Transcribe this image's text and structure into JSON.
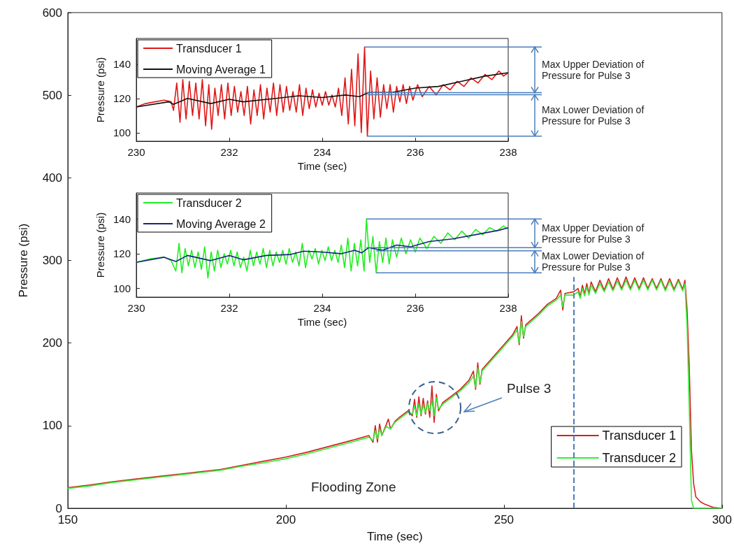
{
  "chart_data": [
    {
      "type": "line",
      "xlabel": "Time (sec)",
      "ylabel": "Pressure (psi)",
      "xlim": [
        150,
        300
      ],
      "ylim": [
        0,
        600
      ],
      "xticks": [
        150,
        200,
        250,
        300
      ],
      "yticks": [
        0,
        100,
        200,
        300,
        400,
        500,
        600
      ],
      "legend": "bottom right",
      "series": [
        {
          "name": "Transducer 1",
          "color": "#d42020",
          "x": [
            150,
            155,
            160,
            165,
            170,
            175,
            180,
            185,
            190,
            195,
            200,
            205,
            210,
            215,
            219,
            220,
            220.5,
            221,
            221.5,
            222,
            223,
            223.5,
            224,
            225,
            226,
            227,
            228,
            229,
            229.5,
            230,
            230.5,
            231,
            231.5,
            232,
            232.5,
            233,
            233.5,
            234,
            234.5,
            235,
            236,
            238,
            240,
            242,
            243,
            243.5,
            244,
            244.5,
            245,
            247,
            250,
            252,
            253,
            253.5,
            254,
            254.5,
            255,
            258,
            260,
            262,
            263,
            263.5,
            264,
            266,
            267,
            267.5,
            268,
            268.5,
            269,
            269.5,
            270,
            271,
            272,
            273,
            274,
            275,
            276,
            277,
            278,
            279,
            280,
            281,
            282,
            283,
            284,
            285,
            286,
            287,
            288,
            289,
            290,
            291,
            291.5,
            292,
            292.5,
            293,
            293.5,
            294,
            295,
            296,
            297,
            298,
            300
          ],
          "values": [
            25,
            28,
            32,
            35,
            38,
            41,
            44,
            47,
            52,
            57,
            62,
            68,
            75,
            82,
            88,
            80,
            100,
            80,
            102,
            88,
            101,
            108,
            96,
            105,
            110,
            114,
            118,
            112,
            132,
            110,
            135,
            112,
            133,
            114,
            130,
            110,
            148,
            104,
            138,
            118,
            128,
            136,
            144,
            155,
            166,
            144,
            176,
            150,
            168,
            180,
            198,
            210,
            220,
            198,
            233,
            206,
            222,
            236,
            247,
            254,
            264,
            240,
            260,
            262,
            266,
            256,
            270,
            259,
            272,
            260,
            274,
            262,
            276,
            264,
            278,
            265,
            279,
            266,
            280,
            266,
            279,
            266,
            279,
            266,
            278,
            266,
            278,
            265,
            278,
            265,
            277,
            265,
            276,
            240,
            170,
            70,
            30,
            14,
            8,
            5,
            3,
            1,
            0
          ]
        },
        {
          "name": "Transducer 2",
          "color": "#33ee33",
          "x": [
            150,
            155,
            160,
            165,
            170,
            175,
            180,
            185,
            190,
            195,
            200,
            205,
            210,
            215,
            219,
            220,
            220.5,
            221,
            221.5,
            222,
            223,
            224,
            225,
            226,
            227,
            228,
            229,
            229.5,
            230,
            230.5,
            231,
            231.5,
            232,
            232.5,
            233,
            233.5,
            234,
            234.5,
            235,
            236,
            238,
            240,
            242,
            243,
            243.5,
            244,
            244.5,
            245,
            247,
            250,
            252,
            253,
            253.5,
            254,
            254.5,
            255,
            258,
            260,
            262,
            263,
            263.5,
            264,
            266,
            267,
            267.5,
            268,
            268.5,
            269,
            269.5,
            270,
            271,
            272,
            273,
            274,
            275,
            276,
            277,
            278,
            279,
            280,
            281,
            282,
            283,
            284,
            285,
            286,
            287,
            288,
            289,
            290,
            291,
            291.5,
            292,
            292.5,
            293,
            293.5,
            300
          ],
          "values": [
            24,
            27,
            31,
            34,
            37,
            40,
            43,
            46,
            51,
            55,
            60,
            66,
            73,
            80,
            86,
            82,
            94,
            84,
            96,
            88,
            99,
            96,
            104,
            108,
            112,
            116,
            114,
            124,
            112,
            126,
            114,
            125,
            116,
            127,
            118,
            130,
            112,
            134,
            120,
            126,
            134,
            142,
            152,
            160,
            146,
            170,
            152,
            166,
            178,
            196,
            208,
            216,
            200,
            226,
            208,
            220,
            234,
            245,
            252,
            258,
            244,
            258,
            258,
            262,
            254,
            266,
            257,
            268,
            258,
            270,
            260,
            272,
            262,
            274,
            263,
            275,
            264,
            276,
            264,
            276,
            264,
            276,
            264,
            276,
            264,
            276,
            263,
            275,
            263,
            275,
            263,
            272,
            220,
            120,
            10,
            0,
            0
          ]
        }
      ],
      "ref_lines": [
        {
          "axis": "x",
          "value": 266,
          "color": "#4a7ebb",
          "line_style": "dashed"
        }
      ],
      "annotations": [
        "Flooding Zone",
        "Pulse 3"
      ]
    },
    {
      "type": "line",
      "xlabel": "Time (sec)",
      "ylabel": "Pressure (psi)",
      "xlim": [
        230,
        238
      ],
      "ylim": [
        95,
        155
      ],
      "xticks": [
        230,
        232,
        234,
        236,
        238
      ],
      "yticks": [
        100,
        120,
        140
      ],
      "legend": "top left",
      "series": [
        {
          "name": "Transducer 1",
          "color": "#e01818",
          "x": [
            230,
            230.2,
            230.4,
            230.6,
            230.75,
            230.8,
            230.87,
            230.94,
            231,
            231.07,
            231.14,
            231.21,
            231.28,
            231.35,
            231.42,
            231.49,
            231.56,
            231.62,
            231.69,
            231.76,
            231.83,
            231.9,
            231.97,
            232.04,
            232.11,
            232.18,
            232.25,
            232.32,
            232.39,
            232.46,
            232.53,
            232.6,
            232.67,
            232.74,
            232.81,
            232.88,
            232.95,
            233.02,
            233.09,
            233.16,
            233.23,
            233.3,
            233.37,
            233.44,
            233.51,
            233.58,
            233.65,
            233.72,
            233.79,
            233.86,
            233.93,
            234,
            234.07,
            234.14,
            234.21,
            234.28,
            234.35,
            234.42,
            234.49,
            234.56,
            234.63,
            234.7,
            234.77,
            234.84,
            234.91,
            234.97,
            235.04,
            235.11,
            235.18,
            235.25,
            235.32,
            235.39,
            235.46,
            235.53,
            235.6,
            235.67,
            235.74,
            235.81,
            235.88,
            235.95,
            236.05,
            236.15,
            236.3,
            236.45,
            236.6,
            236.75,
            236.9,
            237.05,
            237.2,
            237.35,
            237.5,
            237.65,
            237.8,
            237.9,
            238
          ],
          "values": [
            115,
            117,
            118,
            119,
            118,
            113,
            129,
            106,
            131,
            108,
            130,
            110,
            129,
            108,
            131,
            104,
            128,
            102,
            126,
            110,
            128,
            108,
            129,
            110,
            127,
            112,
            124,
            110,
            127,
            105,
            125,
            110,
            128,
            108,
            126,
            112,
            129,
            110,
            128,
            112,
            127,
            113,
            124,
            112,
            128,
            110,
            126,
            114,
            125,
            115,
            123,
            116,
            124,
            116,
            122,
            115,
            126,
            110,
            132,
            105,
            137,
            104,
            146,
            100,
            150,
            98,
            136,
            108,
            132,
            109,
            128,
            114,
            128,
            112,
            127,
            118,
            128,
            117,
            127,
            119,
            128,
            121,
            127,
            122,
            128,
            125,
            130,
            127,
            132,
            129,
            134,
            131,
            136,
            133,
            135
          ]
        },
        {
          "name": "Moving Average 1",
          "color": "#111111",
          "x": [
            230,
            230.7,
            230.8,
            231.1,
            231.6,
            232,
            232.3,
            233,
            233.5,
            234,
            234.5,
            234.8,
            235,
            235.5,
            236,
            236.5,
            237,
            237.5,
            238
          ],
          "values": [
            115,
            118,
            116.5,
            120,
            117,
            119.5,
            118,
            120,
            121.5,
            120.5,
            122,
            121,
            123.5,
            123.5,
            126,
            127,
            130,
            133,
            135
          ]
        }
      ],
      "annotations": [
        "Max Upper Deviation of Pressure for Pulse 3",
        "Max Lower Deviation of Pressure for Pulse 3"
      ]
    },
    {
      "type": "line",
      "xlabel": "Time (sec)",
      "ylabel": "Pressure (psi)",
      "xlim": [
        230,
        238
      ],
      "ylim": [
        95,
        155
      ],
      "xticks": [
        230,
        232,
        234,
        236,
        238
      ],
      "yticks": [
        100,
        120,
        140
      ],
      "legend": "top left",
      "series": [
        {
          "name": "Transducer 2",
          "color": "#22ee22",
          "x": [
            230,
            230.3,
            230.6,
            230.75,
            230.85,
            230.92,
            230.98,
            231.05,
            231.12,
            231.19,
            231.26,
            231.33,
            231.4,
            231.47,
            231.54,
            231.61,
            231.68,
            231.75,
            231.82,
            231.89,
            231.96,
            232.03,
            232.1,
            232.17,
            232.24,
            232.31,
            232.38,
            232.45,
            232.52,
            232.59,
            232.66,
            232.73,
            232.8,
            232.87,
            232.94,
            233.01,
            233.08,
            233.15,
            233.22,
            233.29,
            233.36,
            233.43,
            233.5,
            233.57,
            233.64,
            233.71,
            233.78,
            233.85,
            233.92,
            233.99,
            234.06,
            234.13,
            234.2,
            234.27,
            234.34,
            234.41,
            234.48,
            234.55,
            234.62,
            234.69,
            234.76,
            234.83,
            234.9,
            234.95,
            235.02,
            235.09,
            235.16,
            235.23,
            235.3,
            235.37,
            235.44,
            235.51,
            235.6,
            235.7,
            235.8,
            235.9,
            236,
            236.1,
            236.25,
            236.4,
            236.55,
            236.7,
            236.85,
            237,
            237.15,
            237.3,
            237.45,
            237.6,
            237.75,
            237.9,
            238
          ],
          "values": [
            115,
            117,
            118,
            116,
            110,
            126,
            109,
            123,
            113,
            122,
            112,
            121,
            111,
            124,
            106,
            121,
            110,
            122,
            112,
            120,
            114,
            122,
            113,
            121,
            112,
            118,
            110,
            122,
            113,
            121,
            114,
            123,
            112,
            122,
            113,
            121,
            115,
            122,
            114,
            123,
            115,
            121,
            113,
            126,
            112,
            122,
            117,
            123,
            114,
            122,
            116,
            124,
            116,
            122,
            115,
            125,
            112,
            129,
            110,
            126,
            113,
            128,
            110,
            140,
            115,
            130,
            109,
            127,
            115,
            129,
            114,
            128,
            118,
            129,
            120,
            128,
            121,
            129,
            123,
            130,
            126,
            132,
            128,
            133,
            129,
            134,
            131,
            135,
            133,
            136,
            134
          ]
        },
        {
          "name": "Moving Average 2",
          "color": "#1a237e",
          "x": [
            230,
            230.6,
            230.85,
            231.1,
            231.6,
            232,
            232.3,
            232.8,
            233.3,
            233.6,
            234,
            234.4,
            234.7,
            234.85,
            235,
            235.3,
            235.6,
            235.9,
            236.3,
            236.8,
            237.3,
            237.8,
            238
          ],
          "values": [
            115,
            118,
            115.5,
            119,
            116,
            119,
            116.5,
            119,
            119.5,
            121.5,
            121,
            120,
            122,
            120.5,
            123.5,
            122,
            125,
            124,
            127,
            128.5,
            131,
            133.5,
            135
          ]
        }
      ],
      "annotations": [
        "Max Upper Deviation of Pressure for Pulse 3",
        "Max Lower Deviation of Pressure for Pulse 3"
      ]
    }
  ]
}
